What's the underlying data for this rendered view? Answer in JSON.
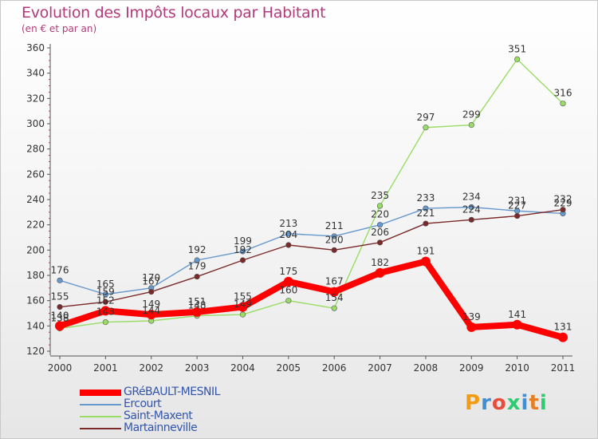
{
  "chart_data": {
    "type": "line",
    "title": "Evolution des Impôts locaux par Habitant",
    "subtitle": "(en € et par an)",
    "xlabel": "",
    "ylabel": "",
    "x": [
      "2000",
      "2001",
      "2002",
      "2003",
      "2004",
      "2005",
      "2006",
      "2007",
      "2008",
      "2009",
      "2010",
      "2011"
    ],
    "ylim": [
      120,
      360
    ],
    "yticks": [
      120,
      140,
      160,
      180,
      200,
      220,
      240,
      260,
      280,
      300,
      320,
      340,
      360
    ],
    "grid": false,
    "legend_position": "bottom-left",
    "series": [
      {
        "name": "GRéBAULT-MESNIL",
        "color": "#ff0000",
        "emphasis": true,
        "values": [
          140,
          152,
          149,
          151,
          155,
          175,
          167,
          182,
          191,
          139,
          141,
          131
        ]
      },
      {
        "name": "Ercourt",
        "color": "#6699cc",
        "emphasis": false,
        "values": [
          176,
          165,
          170,
          192,
          199,
          213,
          211,
          220,
          233,
          234,
          231,
          229
        ]
      },
      {
        "name": "Saint-Maxent",
        "color": "#99dd66",
        "emphasis": false,
        "values": [
          138,
          143,
          144,
          148,
          149,
          160,
          154,
          235,
          297,
          299,
          351,
          316
        ]
      },
      {
        "name": "Martainneville",
        "color": "#7a2a2a",
        "emphasis": false,
        "values": [
          155,
          159,
          167,
          179,
          192,
          204,
          200,
          206,
          221,
          224,
          227,
          232
        ]
      }
    ]
  },
  "logo": {
    "text": "Proxiti",
    "letter_colors": [
      "#f39c12",
      "#3f8fd2",
      "#e74c3c",
      "#2ecc71",
      "#3f8fd2",
      "#e67e22",
      "#2ecc71"
    ]
  }
}
